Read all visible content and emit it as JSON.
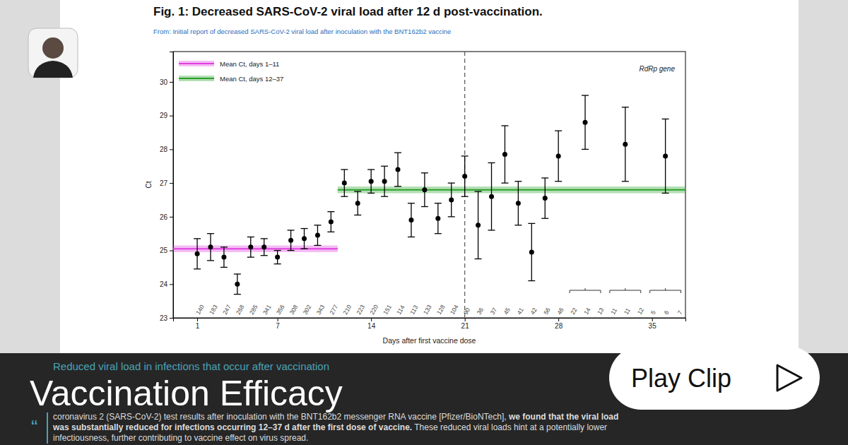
{
  "chart_data": {
    "type": "scatter",
    "title": "Fig. 1: Decreased SARS-CoV-2 viral load after 12 d post-vaccination.",
    "subtitle": "From: Initial report of decreased SARS-CoV-2 viral load after inoculation with the BNT162b2 vaccine",
    "x_label": "Days after first vaccine dose",
    "y_label": "Ct",
    "xlim": [
      -0.8,
      37.5
    ],
    "xticks": [
      1,
      7,
      14,
      21,
      28,
      35
    ],
    "ylim": [
      23,
      30.9
    ],
    "yticks": [
      23,
      24,
      25,
      26,
      27,
      28,
      29,
      30
    ],
    "grid": false,
    "legend": "upper left",
    "series": [
      {
        "type": "scatter",
        "color": "#000000",
        "marker": "circle",
        "x": [
          1,
          2,
          3,
          4,
          5,
          6,
          7,
          8,
          9,
          10,
          11,
          12,
          13,
          14,
          15,
          16,
          17,
          18,
          19,
          20,
          21,
          22,
          23,
          24,
          25,
          26,
          27,
          28,
          30,
          33,
          36
        ],
        "values": [
          24.9,
          25.1,
          24.8,
          24.0,
          25.1,
          25.1,
          24.8,
          25.3,
          25.35,
          25.45,
          25.85,
          27.0,
          26.4,
          27.05,
          27.05,
          27.4,
          25.9,
          26.8,
          25.95,
          26.5,
          27.2,
          25.75,
          26.6,
          27.85,
          26.4,
          24.95,
          26.55,
          27.8,
          28.8,
          28.15,
          27.8
        ],
        "error": [
          0.45,
          0.4,
          0.3,
          0.3,
          0.3,
          0.25,
          0.2,
          0.3,
          0.3,
          0.3,
          0.3,
          0.4,
          0.35,
          0.35,
          0.45,
          0.5,
          0.5,
          0.5,
          0.45,
          0.5,
          0.6,
          1.0,
          1.0,
          0.85,
          0.65,
          0.85,
          0.6,
          0.75,
          0.8,
          1.1,
          1.1
        ]
      },
      {
        "type": "line",
        "name": "Mean Ct, days 1–11",
        "color": "#e040e0",
        "x": [
          -0.8,
          11.5
        ],
        "values": [
          25.05,
          25.05
        ],
        "lower": [
          24.95,
          24.95
        ],
        "upper": [
          25.15,
          25.15
        ]
      },
      {
        "type": "line",
        "name": "Mean Ct, days 12–37",
        "color": "#2ca02c",
        "x": [
          11.5,
          37.5
        ],
        "values": [
          26.8,
          26.8
        ],
        "lower": [
          26.7,
          26.7
        ],
        "upper": [
          26.9,
          26.9
        ]
      }
    ],
    "sample_sizes": {
      "x": [
        1,
        2,
        3,
        4,
        5,
        6,
        7,
        8,
        9,
        10,
        11,
        12,
        13,
        14,
        15,
        16,
        17,
        18,
        19,
        20,
        21,
        22,
        23,
        24,
        25,
        26,
        27,
        28,
        29,
        30,
        31,
        32,
        33,
        34,
        35,
        36,
        37
      ],
      "values": [
        140,
        183,
        247,
        268,
        285,
        341,
        356,
        308,
        302,
        343,
        277,
        210,
        223,
        220,
        151,
        114,
        113,
        133,
        128,
        104,
        90,
        36,
        37,
        45,
        41,
        42,
        56,
        46,
        22,
        14,
        13,
        11,
        11,
        12,
        5,
        6,
        7
      ],
      "groups": [
        [
          29,
          31
        ],
        [
          32,
          34
        ],
        [
          35,
          37
        ]
      ]
    },
    "annotations": [
      {
        "text": "RdRp gene"
      },
      {
        "x": 21,
        "line_style": "dashed"
      }
    ]
  },
  "clip": {
    "heading": "Reduced viral load in infections that occur after vaccination",
    "quote_mark": "“",
    "excerpt": [
      [
        {
          "text": "coronavirus 2 (SARS-CoV-2) test results after inoculation with the BNT162b2 messenger RNA vaccine [Pfizer/BioNTech], ",
          "bold": false
        },
        {
          "text": "we found that the viral load",
          "bold": true
        }
      ],
      [
        {
          "text": "was substantially reduced for infections occurring 12–37 d after the first dose of vaccine.",
          "bold": true
        },
        {
          "text": " These reduced viral loads hint at a potentially lower",
          "bold": false
        }
      ],
      [
        {
          "text": "infectiousness, further contributing to vaccine effect on virus spread.",
          "bold": false
        }
      ]
    ],
    "title": "Vaccination Efficacy",
    "button": "Play Clip"
  }
}
